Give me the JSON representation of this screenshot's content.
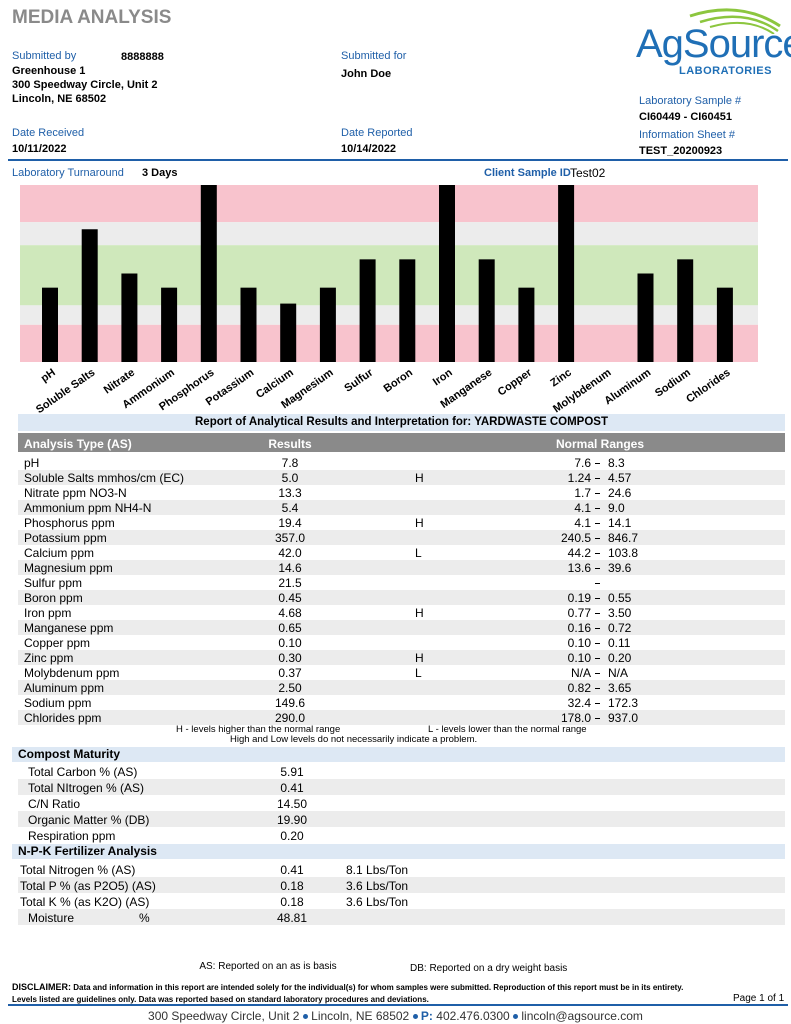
{
  "header": {
    "title": "MEDIA ANALYSIS",
    "logo": {
      "name": "AgSource",
      "sub": "LABORATORIES"
    },
    "submitted_by": {
      "label": "Submitted by",
      "account": "8888888",
      "lines": [
        "Greenhouse 1",
        "300 Speedway Circle, Unit 2",
        "Lincoln, NE  68502"
      ]
    },
    "submitted_for": {
      "label": "Submitted for",
      "name": "John Doe"
    },
    "lab_sample": {
      "label": "Laboratory Sample #",
      "value": "CI60449 - CI60451"
    },
    "info_sheet": {
      "label": "Information Sheet #",
      "value": "TEST_20200923"
    },
    "date_received": {
      "label": "Date Received",
      "value": "10/11/2022"
    },
    "date_reported": {
      "label": "Date Reported",
      "value": "10/14/2022"
    },
    "turnaround": {
      "label": "Laboratory Turnaround",
      "value": "3 Days"
    },
    "client_sample": {
      "label": "Client Sample ID",
      "value": "Test02"
    }
  },
  "chart_data": {
    "type": "bar",
    "color": "#000000",
    "categories": [
      "pH",
      "Soluble Salts",
      "Nitrate",
      "Ammonium",
      "Phosphorus",
      "Potassium",
      "Calcium",
      "Magnesium",
      "Sulfur",
      "Boron",
      "Iron",
      "Manganese",
      "Copper",
      "Zinc",
      "Molybdenum",
      "Aluminum",
      "Sodium",
      "Chlorides"
    ],
    "values": [
      42,
      75,
      50,
      42,
      100,
      42,
      33,
      42,
      58,
      58,
      100,
      58,
      42,
      100,
      0,
      50,
      58,
      42
    ],
    "ylim": [
      0,
      100
    ],
    "bands": [
      {
        "from": 79,
        "to": 100,
        "color": "#f8c3cd"
      },
      {
        "from": 66,
        "to": 79,
        "color": "#ececec"
      },
      {
        "from": 32,
        "to": 66,
        "color": "#cfe8bb"
      },
      {
        "from": 21,
        "to": 32,
        "color": "#ececec"
      },
      {
        "from": 0,
        "to": 21,
        "color": "#f8c3cd"
      }
    ]
  },
  "analysis": {
    "title": "Report of Analytical Results and Interpretation for: YARDWASTE COMPOST",
    "headers": [
      "Analysis Type (AS)",
      "Results",
      "Normal Ranges"
    ],
    "rows": [
      [
        "pH",
        "7.8",
        null,
        "7.6",
        "8.3"
      ],
      [
        "Soluble Salts mmhos/cm (EC)",
        "5.0",
        "H",
        "1.24",
        "4.57"
      ],
      [
        "Nitrate ppm NO3-N",
        "13.3",
        null,
        "1.7",
        "24.6"
      ],
      [
        "Ammonium ppm NH4-N",
        "5.4",
        null,
        "4.1",
        "9.0"
      ],
      [
        "Phosphorus ppm",
        "19.4",
        "H",
        "4.1",
        "14.1"
      ],
      [
        "Potassium ppm",
        "357.0",
        null,
        "240.5",
        "846.7"
      ],
      [
        "Calcium ppm",
        "42.0",
        "L",
        "44.2",
        "103.8"
      ],
      [
        "Magnesium ppm",
        "14.6",
        null,
        "13.6",
        "39.6"
      ],
      [
        "Sulfur ppm",
        "21.5",
        null,
        null,
        null
      ],
      [
        "Boron ppm",
        "0.45",
        null,
        "0.19",
        "0.55"
      ],
      [
        "Iron ppm",
        "4.68",
        "H",
        "0.77",
        "3.50"
      ],
      [
        "Manganese ppm",
        "0.65",
        null,
        "0.16",
        "0.72"
      ],
      [
        "Copper ppm",
        "0.10",
        null,
        "0.10",
        "0.11"
      ],
      [
        "Zinc ppm",
        "0.30",
        "H",
        "0.10",
        "0.20"
      ],
      [
        "Molybdenum ppm",
        "0.37",
        "L",
        "N/A",
        "N/A"
      ],
      [
        "Aluminum ppm",
        "2.50",
        null,
        "0.82",
        "3.65"
      ],
      [
        "Sodium ppm",
        "149.6",
        null,
        "32.4",
        "172.3"
      ],
      [
        "Chlorides ppm",
        "290.0",
        null,
        "178.0",
        "937.0"
      ]
    ],
    "note_h": "H - levels higher than the normal range",
    "note_l": "L - levels lower than the normal range",
    "note": "High and Low levels do not necessarily indicate a problem."
  },
  "compost": {
    "title": "Compost Maturity",
    "rows": [
      [
        "Total Carbon % (AS)",
        "5.91"
      ],
      [
        "Total NItrogen % (AS)",
        "0.41"
      ],
      [
        "C/N Ratio",
        "14.50"
      ],
      [
        "Organic Matter % (DB)",
        "19.90"
      ],
      [
        "Respiration ppm",
        "0.20"
      ]
    ]
  },
  "npk": {
    "title": "N-P-K Fertilizer Analysis",
    "rows": [
      [
        "Total Nitrogen % (AS)",
        "0.41",
        "8.1 Lbs/Ton"
      ],
      [
        "Total P % (as P2O5) (AS)",
        "0.18",
        "3.6 Lbs/Ton"
      ],
      [
        "Total K % (as K2O) (AS)",
        "0.18",
        "3.6 Lbs/Ton"
      ]
    ],
    "moisture": {
      "label": "Moisture",
      "unit": "%",
      "value": "48.81"
    }
  },
  "footer": {
    "as": "AS: Reported on an as is basis",
    "db": "DB: Reported on a dry weight basis",
    "disclaimer_label": "DISCLAIMER:",
    "disclaimer": "Data and information in this report are intended solely for the individual(s) for whom samples were submitted. Reproduction of this report must be in its entirety. Levels listed are guidelines only. Data was reported based on standard laboratory procedures and deviations.",
    "page": "Page 1 of 1",
    "address": "300 Speedway Circle, Unit 2",
    "city": "Lincoln, NE 68502",
    "phone_label": "P:",
    "phone": "402.476.0300",
    "email": "lincoln@agsource.com"
  }
}
